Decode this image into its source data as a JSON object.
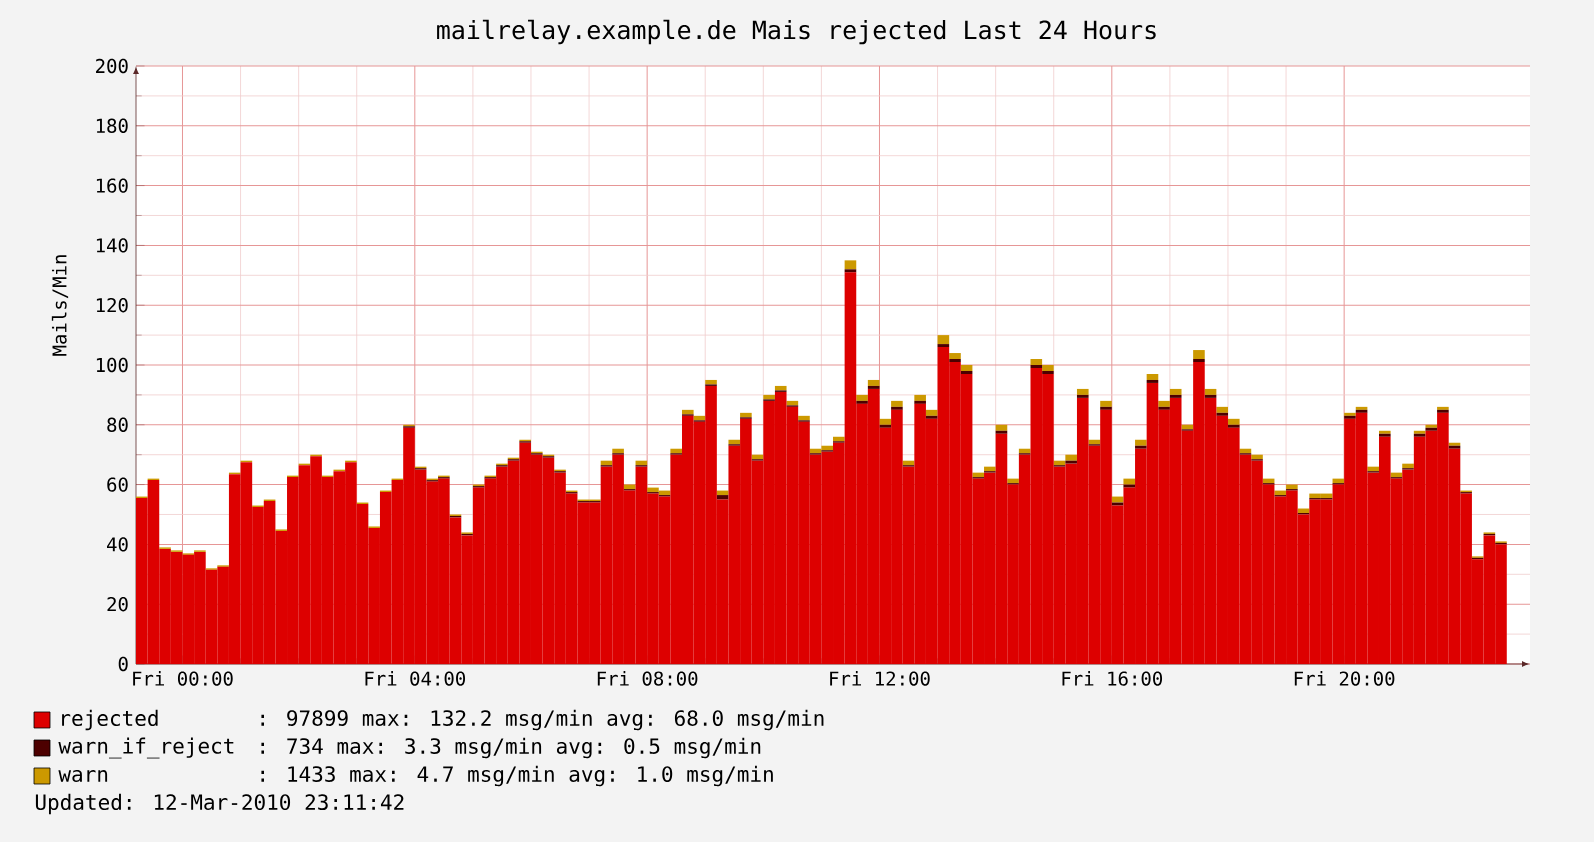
{
  "chart_data": {
    "type": "bar",
    "stacked": true,
    "title": "mailrelay.example.de Mais rejected Last 24 Hours",
    "ylabel": "Mails/Min",
    "x": [
      "2010-03-11T23:18",
      "2010-03-11T23:30",
      "2010-03-11T23:42",
      "2010-03-11T23:54",
      "2010-03-12T00:06",
      "2010-03-12T00:18",
      "2010-03-12T00:30",
      "2010-03-12T00:42",
      "2010-03-12T00:54",
      "2010-03-12T01:06",
      "2010-03-12T01:18",
      "2010-03-12T01:30",
      "2010-03-12T01:42",
      "2010-03-12T01:54",
      "2010-03-12T02:06",
      "2010-03-12T02:18",
      "2010-03-12T02:30",
      "2010-03-12T02:42",
      "2010-03-12T02:54",
      "2010-03-12T03:06",
      "2010-03-12T03:18",
      "2010-03-12T03:30",
      "2010-03-12T03:42",
      "2010-03-12T03:54",
      "2010-03-12T04:06",
      "2010-03-12T04:18",
      "2010-03-12T04:30",
      "2010-03-12T04:42",
      "2010-03-12T04:54",
      "2010-03-12T05:06",
      "2010-03-12T05:18",
      "2010-03-12T05:30",
      "2010-03-12T05:42",
      "2010-03-12T05:54",
      "2010-03-12T06:06",
      "2010-03-12T06:18",
      "2010-03-12T06:30",
      "2010-03-12T06:42",
      "2010-03-12T06:54",
      "2010-03-12T07:06",
      "2010-03-12T07:18",
      "2010-03-12T07:30",
      "2010-03-12T07:42",
      "2010-03-12T07:54",
      "2010-03-12T08:06",
      "2010-03-12T08:18",
      "2010-03-12T08:30",
      "2010-03-12T08:42",
      "2010-03-12T08:54",
      "2010-03-12T09:06",
      "2010-03-12T09:18",
      "2010-03-12T09:30",
      "2010-03-12T09:42",
      "2010-03-12T09:54",
      "2010-03-12T10:06",
      "2010-03-12T10:18",
      "2010-03-12T10:30",
      "2010-03-12T10:42",
      "2010-03-12T10:54",
      "2010-03-12T11:06",
      "2010-03-12T11:18",
      "2010-03-12T11:30",
      "2010-03-12T11:42",
      "2010-03-12T11:54",
      "2010-03-12T12:06",
      "2010-03-12T12:18",
      "2010-03-12T12:30",
      "2010-03-12T12:42",
      "2010-03-12T12:54",
      "2010-03-12T13:06",
      "2010-03-12T13:18",
      "2010-03-12T13:30",
      "2010-03-12T13:42",
      "2010-03-12T13:54",
      "2010-03-12T14:06",
      "2010-03-12T14:18",
      "2010-03-12T14:30",
      "2010-03-12T14:42",
      "2010-03-12T14:54",
      "2010-03-12T15:06",
      "2010-03-12T15:18",
      "2010-03-12T15:30",
      "2010-03-12T15:42",
      "2010-03-12T15:54",
      "2010-03-12T16:06",
      "2010-03-12T16:18",
      "2010-03-12T16:30",
      "2010-03-12T16:42",
      "2010-03-12T16:54",
      "2010-03-12T17:06",
      "2010-03-12T17:18",
      "2010-03-12T17:30",
      "2010-03-12T17:42",
      "2010-03-12T17:54",
      "2010-03-12T18:06",
      "2010-03-12T18:18",
      "2010-03-12T18:30",
      "2010-03-12T18:42",
      "2010-03-12T18:54",
      "2010-03-12T19:06",
      "2010-03-12T19:18",
      "2010-03-12T19:30",
      "2010-03-12T19:42",
      "2010-03-12T19:54",
      "2010-03-12T20:06",
      "2010-03-12T20:18",
      "2010-03-12T20:30",
      "2010-03-12T20:42",
      "2010-03-12T20:54",
      "2010-03-12T21:06",
      "2010-03-12T21:18",
      "2010-03-12T21:30",
      "2010-03-12T21:42",
      "2010-03-12T21:54",
      "2010-03-12T22:06",
      "2010-03-12T22:18",
      "2010-03-12T22:30",
      "2010-03-12T22:42"
    ],
    "series": [
      {
        "name": "rejected",
        "color": "#dd0000",
        "values": [
          55.5,
          61.5,
          38.5,
          37.5,
          36.5,
          37.5,
          31.5,
          32.5,
          63.5,
          67.5,
          52.5,
          54.5,
          44.5,
          62.5,
          66.5,
          69.5,
          62.5,
          64.5,
          67.5,
          53.5,
          45.5,
          57.5,
          61.5,
          79,
          65,
          61,
          62,
          49,
          43,
          59,
          62,
          66,
          68,
          74,
          70,
          69,
          64,
          57,
          54,
          54,
          66,
          70,
          58,
          66,
          57,
          56,
          70,
          83,
          81,
          93,
          55,
          73,
          82,
          68,
          88,
          91,
          86,
          81,
          70,
          71,
          74,
          131,
          87,
          92,
          79,
          85,
          66,
          87,
          82,
          106,
          101,
          97,
          62,
          64,
          77,
          60,
          70,
          99,
          97,
          66,
          67,
          89,
          73,
          85,
          53,
          59,
          72,
          94,
          85,
          89,
          78,
          101,
          89,
          83,
          79,
          70,
          68,
          60,
          56,
          58,
          50,
          55,
          55,
          60,
          82,
          84,
          64,
          76,
          62,
          65,
          76,
          78,
          84,
          72,
          57,
          35,
          43,
          40
        ]
      },
      {
        "name": "warn_if_reject",
        "color": "#4d0000",
        "values": [
          0,
          0,
          0,
          0,
          0,
          0,
          0,
          0,
          0,
          0,
          0,
          0,
          0,
          0,
          0,
          0,
          0,
          0,
          0,
          0,
          0,
          0,
          0,
          0.5,
          0.5,
          0.5,
          0.5,
          0.5,
          0.5,
          0.5,
          0.5,
          0.5,
          0.5,
          0.5,
          0.5,
          0.5,
          0.5,
          0.5,
          0.5,
          0.5,
          0.5,
          0.5,
          0.5,
          0.5,
          0.5,
          0.5,
          0.5,
          0.5,
          0.5,
          0.5,
          1.5,
          0.5,
          0.5,
          0.5,
          0.5,
          0.5,
          0.5,
          0.5,
          0.5,
          0.5,
          0.5,
          1,
          1,
          1,
          1,
          1,
          0.5,
          1,
          1,
          1,
          1,
          1,
          0.5,
          0.5,
          1,
          0.5,
          0.5,
          1,
          1,
          0.5,
          1,
          1,
          0.5,
          1,
          1,
          1,
          1,
          1,
          1,
          1,
          0.5,
          1,
          1,
          1,
          1,
          0.5,
          0.5,
          0.5,
          0.5,
          0.5,
          0.5,
          0.5,
          0.5,
          0.5,
          1,
          1,
          0.5,
          1,
          0.5,
          0.5,
          1,
          1,
          1,
          1,
          0.5,
          0.5,
          0.5,
          0.5
        ]
      },
      {
        "name": "warn",
        "color": "#cc9900",
        "values": [
          0.5,
          0.5,
          0.5,
          0.5,
          0.5,
          0.5,
          0.5,
          0.5,
          0.5,
          0.5,
          0.5,
          0.5,
          0.5,
          0.5,
          0.5,
          0.5,
          0.5,
          0.5,
          0.5,
          0.5,
          0.5,
          0.5,
          0.5,
          0.5,
          0.5,
          0.5,
          0.5,
          0.5,
          0.5,
          0.5,
          0.5,
          0.5,
          0.5,
          0.5,
          0.5,
          0.5,
          0.5,
          0.5,
          0.5,
          0.5,
          1.5,
          1.5,
          1.5,
          1.5,
          1.5,
          1.5,
          1.5,
          1.5,
          1.5,
          1.5,
          1.5,
          1.5,
          1.5,
          1.5,
          1.5,
          1.5,
          1.5,
          1.5,
          1.5,
          1.5,
          1.5,
          3,
          2,
          2,
          2,
          2,
          1.5,
          2,
          2,
          3,
          2,
          2,
          1.5,
          1.5,
          2,
          1.5,
          1.5,
          2,
          2,
          1.5,
          2,
          2,
          1.5,
          2,
          2,
          2,
          2,
          2,
          2,
          2,
          1.5,
          3,
          2,
          2,
          2,
          1.5,
          1.5,
          1.5,
          1.5,
          1.5,
          1.5,
          1.5,
          1.5,
          1.5,
          1,
          1,
          1.5,
          1,
          1.5,
          1.5,
          1,
          1,
          1,
          1,
          0.5,
          0.5,
          0.5,
          0.5
        ]
      }
    ],
    "xlim": [
      "2010-03-11T23:12",
      "2010-03-12T23:12"
    ],
    "ylim": [
      0,
      200
    ],
    "xticks": [
      {
        "value": "2010-03-12T00:00",
        "label": "Fri 00:00"
      },
      {
        "value": "2010-03-12T04:00",
        "label": "Fri 04:00"
      },
      {
        "value": "2010-03-12T08:00",
        "label": "Fri 08:00"
      },
      {
        "value": "2010-03-12T12:00",
        "label": "Fri 12:00"
      },
      {
        "value": "2010-03-12T16:00",
        "label": "Fri 16:00"
      },
      {
        "value": "2010-03-12T20:00",
        "label": "Fri 20:00"
      }
    ],
    "yticks": [
      0,
      20,
      40,
      60,
      80,
      100,
      120,
      140,
      160,
      180,
      200
    ],
    "grid": true,
    "legend": "bottom",
    "annotations": [
      ": 97899 max: 132.2 msg/min avg: 68.0 msg/min",
      ": 734 max: 3.3 msg/min avg: 0.5 msg/min",
      ": 1433 max: 4.7 msg/min avg: 1.0 msg/min",
      "Updated: 12-Mar-2010 23:11:42"
    ]
  }
}
